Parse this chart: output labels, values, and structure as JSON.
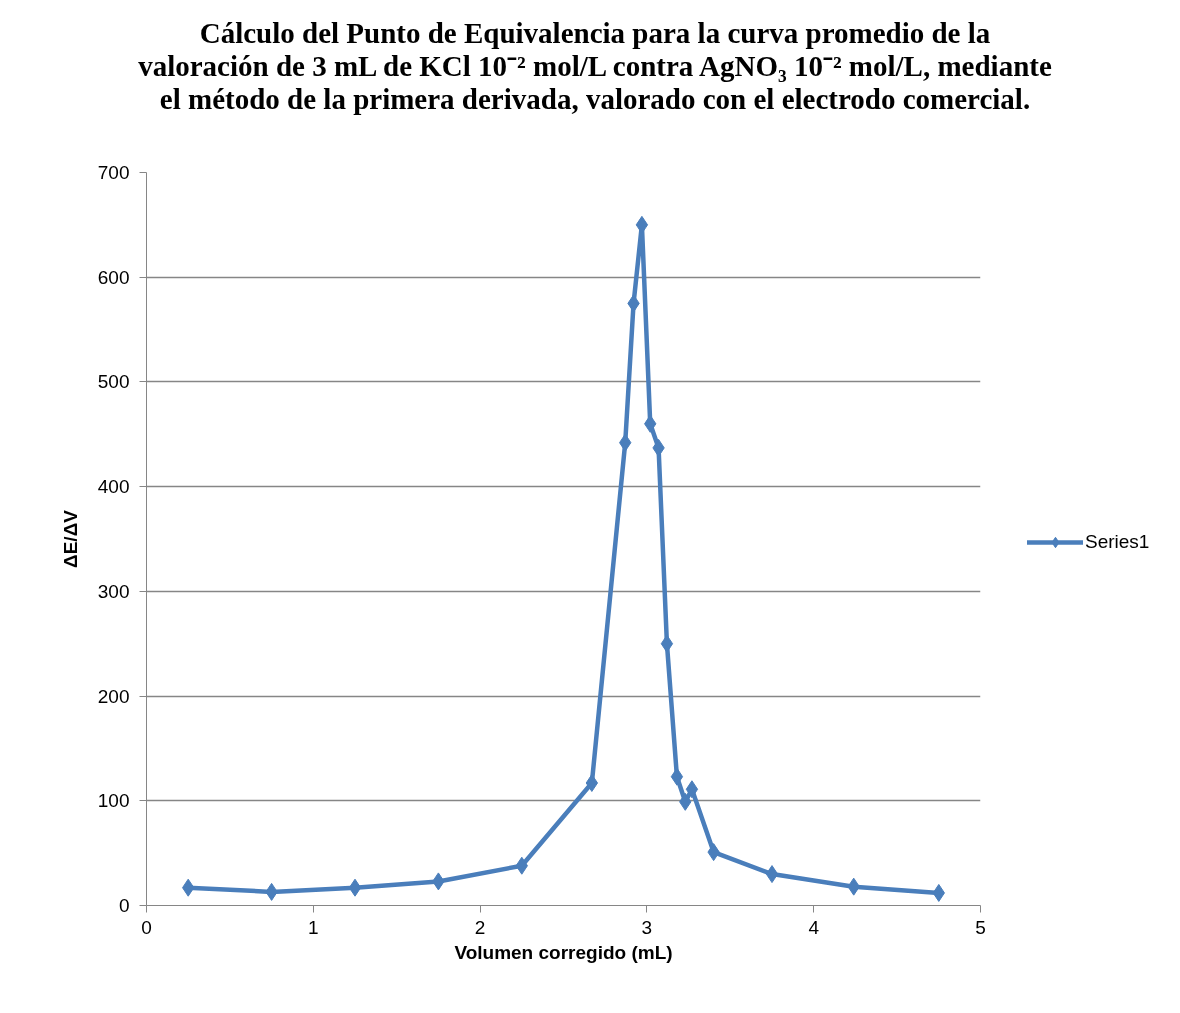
{
  "chart_data": {
    "type": "line",
    "title": "Cálculo del Punto de Equivalencia para la curva promedio de la valoración de 3 mL de KCl 10⁻² mol/L contra AgNO₃ 10⁻² mol/L, mediante el método de la primera derivada, valorado con el electrodo comercial.",
    "xlabel": "Volumen corregido (mL)",
    "ylabel": "ΔE/ΔV",
    "series": [
      {
        "name": "Series1",
        "color": "#4a7ebb",
        "x": [
          0.25,
          0.75,
          1.25,
          1.75,
          2.25,
          2.67,
          2.87,
          2.92,
          2.97,
          3.02,
          3.07,
          3.12,
          3.18,
          3.23,
          3.27,
          3.4,
          3.75,
          4.24,
          4.75
        ],
        "values": [
          17,
          13,
          17,
          23,
          38,
          117,
          442,
          575,
          650,
          460,
          437,
          250,
          123,
          99,
          111,
          51,
          30,
          18,
          12
        ]
      }
    ],
    "xlim": [
      0,
      5
    ],
    "xticks": [
      0,
      1,
      2,
      3,
      4,
      5
    ],
    "ylim": [
      0,
      700
    ],
    "yticks": [
      0,
      100,
      200,
      300,
      400,
      500,
      600,
      700
    ],
    "grid": "y",
    "legend": "right",
    "marker": "diamond"
  }
}
